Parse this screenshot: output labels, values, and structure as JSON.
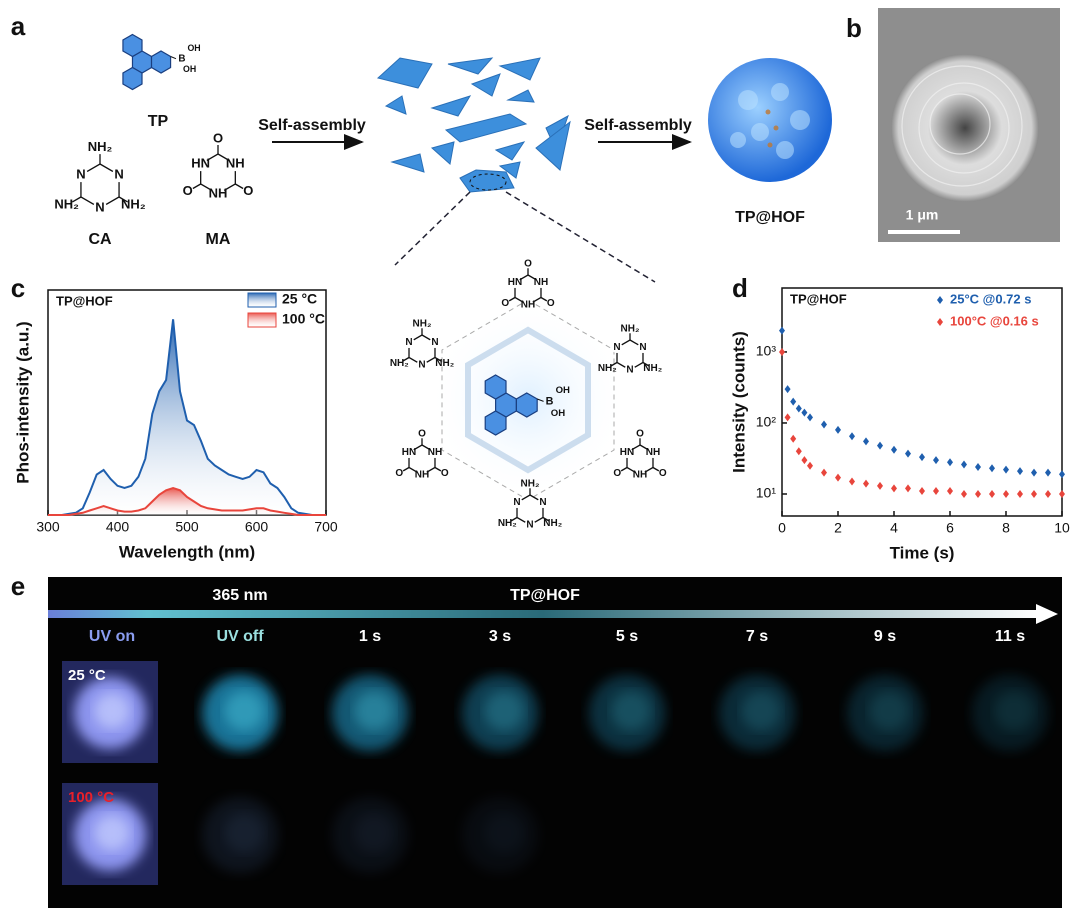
{
  "panel_labels": [
    "a",
    "b",
    "c",
    "d",
    "e"
  ],
  "scheme": {
    "molecules": {
      "tp": "TP",
      "ca": "CA",
      "ma": "MA"
    },
    "step_labels": [
      "Self-assembly",
      "Self-assembly"
    ],
    "product": "TP@HOF",
    "atoms": {
      "amine": "NH₂",
      "hydroxyl": "OH",
      "boron": "B",
      "carbonyl": "O",
      "imine": "NH",
      "imine_left": "HN",
      "nitrogen": "N"
    }
  },
  "sem": {
    "scale_bar": "1 μm"
  },
  "chart_data": [
    {
      "type": "line",
      "annotation": "TP@HOF",
      "x_label": "Wavelength (nm)",
      "y_label": "Phos-intensity (a.u.)",
      "x": [
        300,
        310,
        320,
        330,
        340,
        350,
        360,
        370,
        380,
        390,
        400,
        410,
        420,
        430,
        440,
        450,
        460,
        470,
        480,
        490,
        500,
        510,
        520,
        530,
        540,
        550,
        560,
        570,
        580,
        590,
        600,
        610,
        620,
        630,
        640,
        650,
        660,
        670,
        680,
        690,
        700
      ],
      "series": [
        {
          "name": "25 °C",
          "color": "#1f5fae",
          "values": [
            0,
            0,
            0,
            0.5,
            1,
            3,
            10,
            18,
            20,
            16,
            13,
            12,
            13,
            17,
            25,
            45,
            55,
            60,
            87,
            55,
            42,
            40,
            33,
            25,
            22,
            20,
            18,
            17,
            16,
            17,
            20,
            19,
            14,
            12,
            8,
            3,
            1,
            0.5,
            0,
            0,
            0
          ]
        },
        {
          "name": "100 °C",
          "color": "#e8453c",
          "values": [
            0,
            0,
            0,
            0,
            0.5,
            1,
            2,
            3,
            4,
            3,
            2,
            1.5,
            1.5,
            2,
            3,
            6,
            9,
            11,
            12,
            11,
            8,
            6,
            4,
            3,
            2.5,
            2,
            2,
            2,
            2,
            2.5,
            3,
            3,
            2,
            1.5,
            1,
            0.5,
            0,
            0,
            0,
            0,
            0
          ]
        }
      ],
      "xlim": [
        300,
        700
      ],
      "xticks": [
        300,
        400,
        500,
        600,
        700
      ],
      "ylim": [
        0,
        100
      ]
    },
    {
      "type": "scatter",
      "annotation": "TP@HOF",
      "x_label": "Time (s)",
      "y_label": "Intensity (counts)",
      "log_y": true,
      "x": [
        0,
        0.2,
        0.4,
        0.6,
        0.8,
        1,
        1.5,
        2,
        2.5,
        3,
        3.5,
        4,
        4.5,
        5,
        5.5,
        6,
        6.5,
        7,
        7.5,
        8,
        8.5,
        9,
        9.5,
        10
      ],
      "series": [
        {
          "name": "25°C  @0.72 s",
          "color": "#1f5fae",
          "values": [
            2000,
            300,
            200,
            160,
            140,
            120,
            95,
            80,
            65,
            55,
            48,
            42,
            37,
            33,
            30,
            28,
            26,
            24,
            23,
            22,
            21,
            20,
            20,
            19
          ]
        },
        {
          "name": "100°C @0.16 s",
          "color": "#e8453c",
          "values": [
            1000,
            120,
            60,
            40,
            30,
            25,
            20,
            17,
            15,
            14,
            13,
            12,
            12,
            11,
            11,
            11,
            10,
            10,
            10,
            10,
            10,
            10,
            10,
            10
          ]
        }
      ],
      "xlim": [
        0,
        10
      ],
      "xticks": [
        0,
        2,
        4,
        6,
        8,
        10
      ],
      "ylim": [
        4.9,
        7950
      ],
      "yticks": [
        {
          "value": 10,
          "label": "10¹"
        },
        {
          "value": 100,
          "label": "10²"
        },
        {
          "value": 1000,
          "label": "10³"
        }
      ]
    }
  ],
  "photos": {
    "excitation": "365 nm",
    "sample": "TP@HOF",
    "time_labels": [
      "UV on",
      "UV off",
      "1 s",
      "3 s",
      "5 s",
      "7 s",
      "9 s",
      "11 s"
    ],
    "row_labels": [
      "25 °C",
      "100 °C"
    ]
  }
}
